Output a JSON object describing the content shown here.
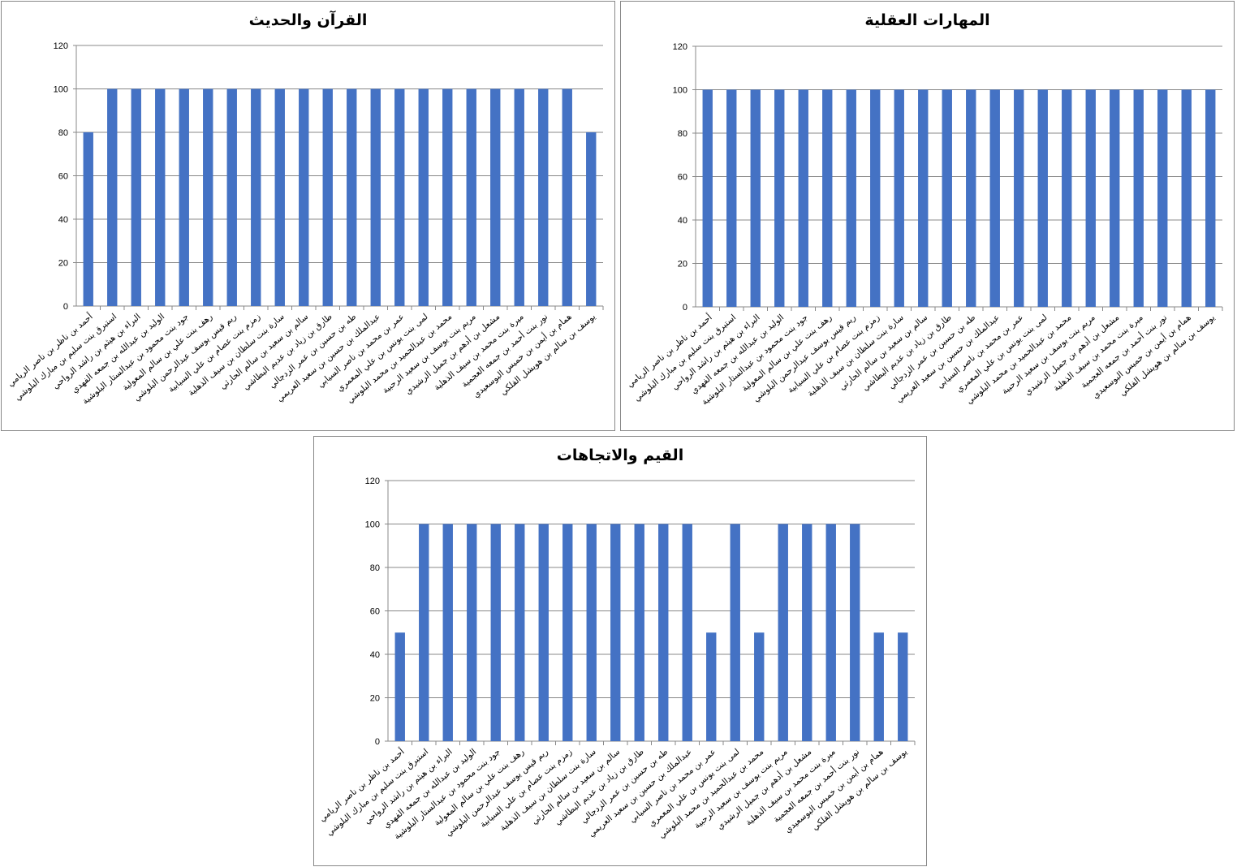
{
  "chart_data": [
    {
      "type": "bar",
      "title": "القرآن والحديث",
      "xlabel": "",
      "ylabel": "",
      "ylim": [
        0,
        120
      ],
      "yticks": [
        0,
        20,
        40,
        60,
        80,
        100,
        120
      ],
      "grid": true,
      "bar_color": "#4472C4",
      "values": [
        80,
        100,
        100,
        100,
        100,
        100,
        100,
        100,
        100,
        100,
        100,
        100,
        100,
        100,
        100,
        100,
        100,
        100,
        100,
        100,
        100,
        80
      ]
    },
    {
      "type": "bar",
      "title": "المهارات العقلية",
      "xlabel": "",
      "ylabel": "",
      "ylim": [
        0,
        120
      ],
      "yticks": [
        0,
        20,
        40,
        60,
        80,
        100,
        120
      ],
      "grid": true,
      "bar_color": "#4472C4",
      "values": [
        100,
        100,
        100,
        100,
        100,
        100,
        100,
        100,
        100,
        100,
        100,
        100,
        100,
        100,
        100,
        100,
        100,
        100,
        100,
        100,
        100,
        100
      ]
    },
    {
      "type": "bar",
      "title": "القيم والاتجاهات",
      "xlabel": "",
      "ylabel": "",
      "ylim": [
        0,
        120
      ],
      "yticks": [
        0,
        20,
        40,
        60,
        80,
        100,
        120
      ],
      "grid": true,
      "bar_color": "#4472C4",
      "values": [
        50,
        100,
        100,
        100,
        100,
        100,
        100,
        100,
        100,
        100,
        100,
        100,
        100,
        50,
        100,
        50,
        100,
        100,
        100,
        100,
        50,
        50
      ]
    }
  ],
  "categories": [
    "أحمد بن ناظر بن ناصر الريامي",
    "استبرق بنت سليم بن مبارك البلوشي",
    "البراء بن هيثم بن راشد الرواحي",
    "الوليد بن عبدالله بن جمعه الفهدي",
    "جود بنت محمود بن عبدالستار البلوشية",
    "رهف بنت علي بن سالم المعولية",
    "ريم قيس يوسف عبدالرحمن البلوشي",
    "زمزم بنت عصام بن علي السيابية",
    "سارة بنت سلطان بن سيف الذهلية",
    "سالم بن سعيد بن سالم الحارثي",
    "طارق بن زياد بن عديم البطاشي",
    "طه بن حسين بن عمر الزدجالي",
    "عبدالملك بن حسين بن سعيد العريمي",
    "عمر بن محمد بن ناصر السيابي",
    "لمى بنت يونس بن علي المعمري",
    "محمد بن عبدالحميد بن محمد البلوشي",
    "مريم بنت يوسف بن سعيد الرحبية",
    "مشعل بن أدهم بن جميل الرشيدي",
    "ميرة بنت محمد بن سيف الذهلية",
    "نور بنت أحمد بن جمعه العجمية",
    "همام بن أيمن بن خميس البوسعيدي",
    "يوسف بن سالم بن هويشل الفلكي"
  ]
}
